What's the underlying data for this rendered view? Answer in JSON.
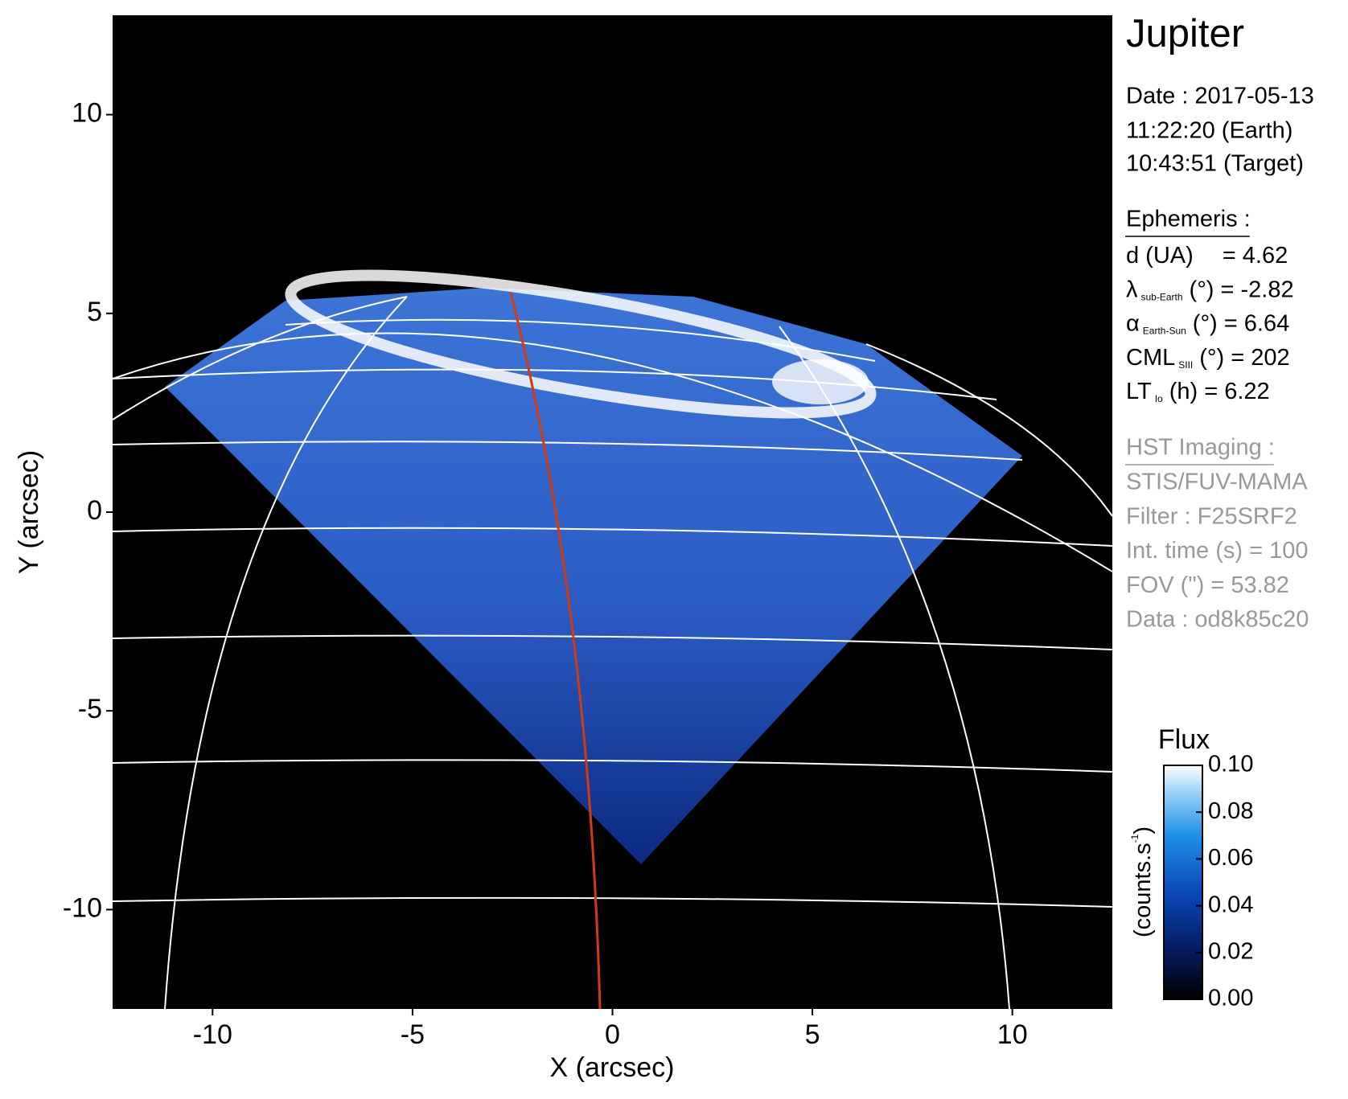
{
  "chart_data": {
    "type": "image",
    "xlabel": "X (arcsec)",
    "ylabel": "Y (arcsec)",
    "xlim": [
      -12.5,
      12.5
    ],
    "ylim": [
      -12.5,
      12.5
    ],
    "xticks": [
      -10,
      -5,
      0,
      5,
      10
    ],
    "yticks": [
      -10,
      -5,
      0,
      5,
      10
    ],
    "colorbar": {
      "title": "Flux",
      "label": {
        "text": "(counts.s",
        "sup": "-1",
        "end": ")"
      },
      "lim": [
        0,
        0.1
      ],
      "ticks": [
        {
          "value": 0,
          "label": "0.00"
        },
        {
          "value": 0.02,
          "label": "0.02"
        },
        {
          "value": 0.04,
          "label": "0.04"
        },
        {
          "value": 0.06,
          "label": "0.06"
        },
        {
          "value": 0.08,
          "label": "0.08"
        },
        {
          "value": 0.1,
          "label": "0.10"
        }
      ]
    }
  },
  "info": {
    "target": "Jupiter",
    "date_lines": [
      "Date : 2017-05-13",
      "11:22:20 (Earth)",
      "10:43:51 (Target)"
    ],
    "ephemeris": {
      "title": "Ephemeris :",
      "rows": [
        {
          "main": "d (UA)",
          "rest": "= 4.62"
        },
        {
          "main": "λ",
          "sub": "sub-Earth",
          "rest": "(°) = -2.82"
        },
        {
          "main": "α",
          "sub": "Earth-Sun",
          "rest": "(°) = 6.64"
        },
        {
          "main": "CML",
          "sub": "SIII",
          "rest": "(°) = 202"
        },
        {
          "main": "LT",
          "sub": "Io",
          "rest": "(h) = 6.22"
        }
      ]
    },
    "imaging": {
      "title": "HST Imaging :",
      "lines": [
        "STIS/FUV-MAMA",
        "Filter : F25SRF2",
        "Int. time (s) = 100",
        "FOV (\") = 53.82",
        "Data : od8k85c20"
      ]
    }
  }
}
